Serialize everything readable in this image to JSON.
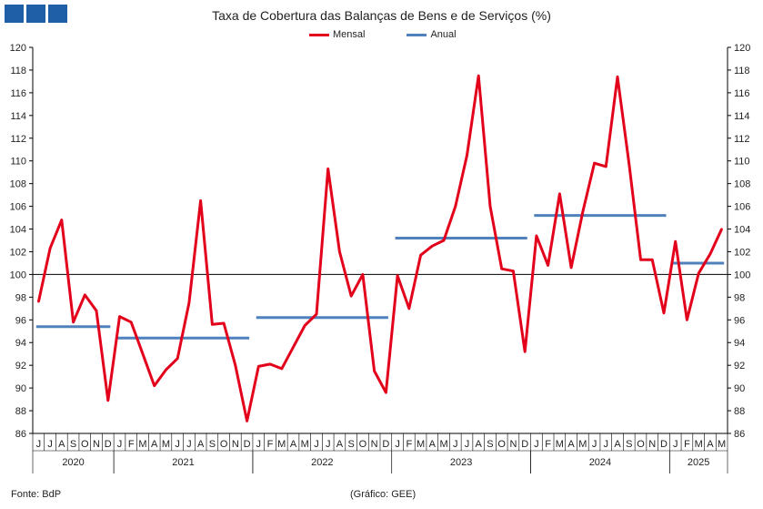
{
  "header": {
    "title": "Taxa de Cobertura das Balanças de Bens e de Serviços (%)"
  },
  "footer": {
    "source": "Fonte: BdP",
    "credit": "(Gráfico: GEE)"
  },
  "colors": {
    "logo": "#1f5fa8",
    "mensal": "#e3001b",
    "anual": "#4f81bd",
    "reference": "#000000"
  },
  "chart_data": {
    "type": "line",
    "title": "Taxa de Cobertura das Balanças de Bens e de Serviços (%)",
    "ylim": [
      86,
      120
    ],
    "yticks": [
      86,
      88,
      90,
      92,
      94,
      96,
      98,
      100,
      102,
      104,
      106,
      108,
      110,
      112,
      114,
      116,
      118,
      120
    ],
    "y_axis_both_sides": true,
    "reference_line": 100,
    "legend_position": "top-center",
    "grid": false,
    "month_labels": [
      "J",
      "J",
      "A",
      "S",
      "O",
      "N",
      "D",
      "J",
      "F",
      "M",
      "A",
      "M",
      "J",
      "J",
      "A",
      "S",
      "O",
      "N",
      "D",
      "J",
      "F",
      "M",
      "A",
      "M",
      "J",
      "J",
      "A",
      "S",
      "O",
      "N",
      "D",
      "J",
      "F",
      "M",
      "A",
      "M",
      "J",
      "J",
      "A",
      "S",
      "O",
      "N",
      "D",
      "J",
      "F",
      "M",
      "A",
      "M",
      "J",
      "J",
      "A",
      "S",
      "O",
      "N",
      "D",
      "J",
      "F",
      "M",
      "A",
      "M"
    ],
    "years": [
      {
        "label": "2020",
        "start": 0,
        "end": 6
      },
      {
        "label": "2021",
        "start": 7,
        "end": 18
      },
      {
        "label": "2022",
        "start": 19,
        "end": 30
      },
      {
        "label": "2023",
        "start": 31,
        "end": 42
      },
      {
        "label": "2024",
        "start": 43,
        "end": 54
      },
      {
        "label": "2025",
        "start": 55,
        "end": 59
      }
    ],
    "series": [
      {
        "name": "Mensal",
        "values": [
          97.6,
          102.3,
          104.8,
          95.8,
          98.2,
          96.8,
          88.9,
          96.3,
          95.8,
          93.0,
          90.2,
          91.6,
          92.6,
          97.5,
          106.5,
          95.6,
          95.7,
          92.0,
          87.1,
          91.9,
          92.1,
          91.7,
          93.6,
          95.5,
          96.5,
          109.3,
          102.0,
          98.1,
          100.0,
          91.5,
          89.6,
          99.9,
          97.0,
          101.7,
          102.5,
          103.0,
          106.0,
          110.5,
          117.5,
          106.0,
          100.5,
          100.3,
          93.2,
          103.4,
          100.8,
          107.1,
          100.6,
          105.5,
          109.8,
          109.5,
          117.4,
          109.7,
          101.3,
          101.3,
          96.6,
          102.9,
          96.0,
          100.1,
          101.8,
          104.0
        ]
      },
      {
        "name": "Anual",
        "segments": [
          {
            "start": 0,
            "end": 6,
            "value": 95.4
          },
          {
            "start": 7,
            "end": 18,
            "value": 94.4
          },
          {
            "start": 19,
            "end": 30,
            "value": 96.2
          },
          {
            "start": 31,
            "end": 42,
            "value": 103.2
          },
          {
            "start": 43,
            "end": 54,
            "value": 105.2
          },
          {
            "start": 55,
            "end": 59,
            "value": 101.0
          }
        ]
      }
    ]
  }
}
